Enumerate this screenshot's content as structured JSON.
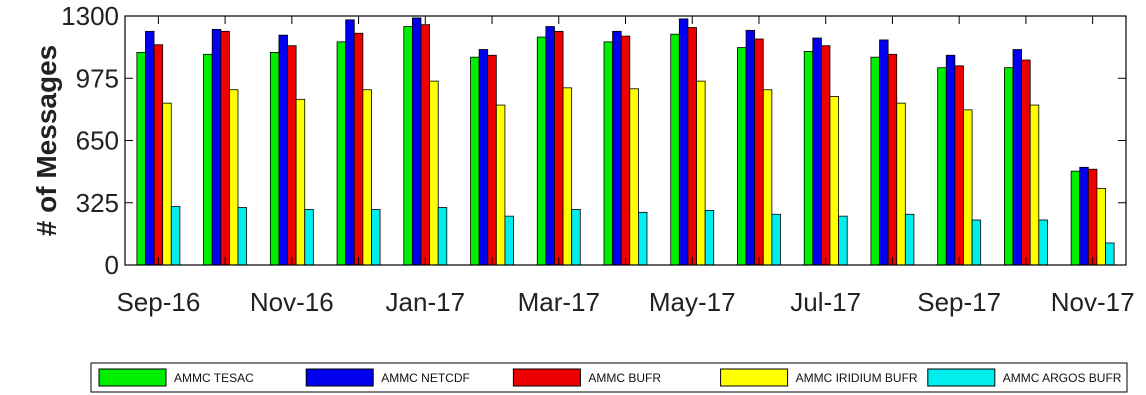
{
  "chart_data": {
    "type": "bar",
    "title": "",
    "xlabel": "",
    "ylabel": "# of Messages",
    "ylim": [
      0,
      1300
    ],
    "yticks": [
      0,
      325,
      650,
      975,
      1300
    ],
    "grid": false,
    "legend_position": "bottom",
    "categories": [
      "Sep-16",
      "Oct-16",
      "Nov-16",
      "Dec-16",
      "Jan-17",
      "Feb-17",
      "Mar-17",
      "Apr-17",
      "May-17",
      "Jun-17",
      "Jul-17",
      "Aug-17",
      "Sep-17",
      "Oct-17",
      "Nov-17"
    ],
    "xtick_labels": [
      "Sep-16",
      "",
      "Nov-16",
      "",
      "Jan-17",
      "",
      "Mar-17",
      "",
      "May-17",
      "",
      "Jul-17",
      "",
      "Sep-17",
      "",
      "Nov-17"
    ],
    "series": [
      {
        "name": "AMMC TESAC",
        "color": "#00ee00",
        "values": [
          1110,
          1100,
          1110,
          1165,
          1245,
          1085,
          1190,
          1165,
          1205,
          1135,
          1115,
          1085,
          1030,
          1030,
          490
        ]
      },
      {
        "name": "AMMC NETCDF",
        "color": "#0000ee",
        "values": [
          1220,
          1230,
          1200,
          1280,
          1290,
          1125,
          1245,
          1220,
          1285,
          1225,
          1185,
          1175,
          1095,
          1125,
          510
        ]
      },
      {
        "name": "AMMC BUFR",
        "color": "#ee0000",
        "values": [
          1150,
          1220,
          1145,
          1210,
          1255,
          1095,
          1220,
          1195,
          1240,
          1180,
          1145,
          1100,
          1040,
          1070,
          500
        ]
      },
      {
        "name": "AMMC IRIDIUM BUFR",
        "color": "#ffff00",
        "values": [
          845,
          915,
          865,
          915,
          960,
          835,
          925,
          920,
          960,
          915,
          880,
          845,
          810,
          835,
          400
        ]
      },
      {
        "name": "AMMC ARGOS BUFR",
        "color": "#00eeee",
        "values": [
          305,
          300,
          290,
          290,
          300,
          255,
          290,
          275,
          285,
          265,
          255,
          265,
          235,
          235,
          115
        ]
      }
    ]
  }
}
